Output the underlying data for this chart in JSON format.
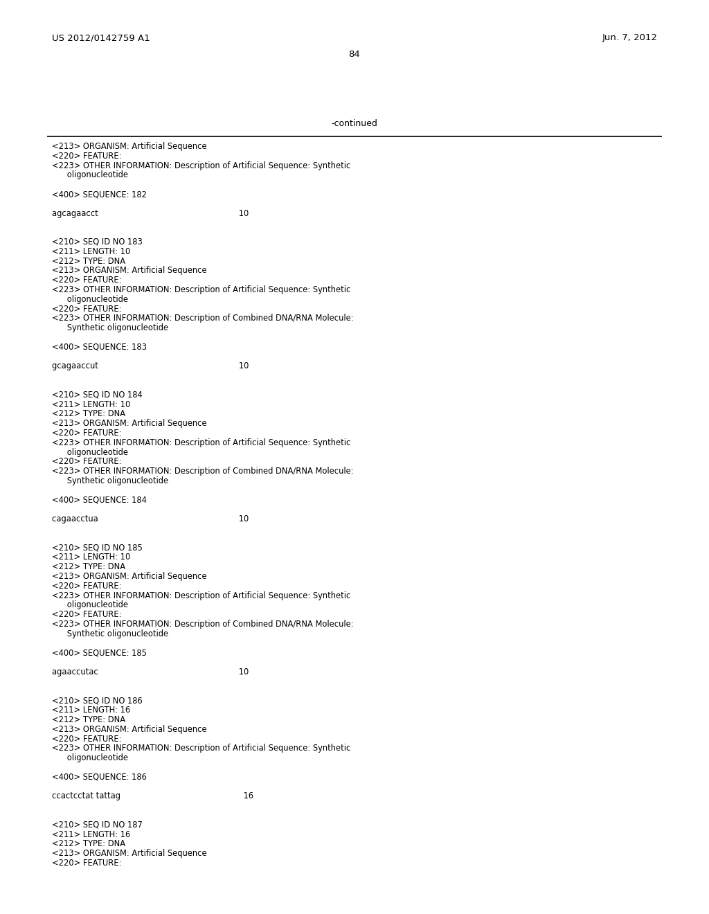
{
  "header_left": "US 2012/0142759 A1",
  "header_right": "Jun. 7, 2012",
  "page_number": "84",
  "continued_text": "-continued",
  "background_color": "#ffffff",
  "text_color": "#000000",
  "content": [
    "<213> ORGANISM: Artificial Sequence",
    "<220> FEATURE:",
    "<223> OTHER INFORMATION: Description of Artificial Sequence: Synthetic",
    "      oligonucleotide",
    "",
    "<400> SEQUENCE: 182",
    "",
    "agcagaacct                                                        10",
    "",
    "",
    "<210> SEQ ID NO 183",
    "<211> LENGTH: 10",
    "<212> TYPE: DNA",
    "<213> ORGANISM: Artificial Sequence",
    "<220> FEATURE:",
    "<223> OTHER INFORMATION: Description of Artificial Sequence: Synthetic",
    "      oligonucleotide",
    "<220> FEATURE:",
    "<223> OTHER INFORMATION: Description of Combined DNA/RNA Molecule:",
    "      Synthetic oligonucleotide",
    "",
    "<400> SEQUENCE: 183",
    "",
    "gcagaaccut                                                        10",
    "",
    "",
    "<210> SEQ ID NO 184",
    "<211> LENGTH: 10",
    "<212> TYPE: DNA",
    "<213> ORGANISM: Artificial Sequence",
    "<220> FEATURE:",
    "<223> OTHER INFORMATION: Description of Artificial Sequence: Synthetic",
    "      oligonucleotide",
    "<220> FEATURE:",
    "<223> OTHER INFORMATION: Description of Combined DNA/RNA Molecule:",
    "      Synthetic oligonucleotide",
    "",
    "<400> SEQUENCE: 184",
    "",
    "cagaacctua                                                        10",
    "",
    "",
    "<210> SEQ ID NO 185",
    "<211> LENGTH: 10",
    "<212> TYPE: DNA",
    "<213> ORGANISM: Artificial Sequence",
    "<220> FEATURE:",
    "<223> OTHER INFORMATION: Description of Artificial Sequence: Synthetic",
    "      oligonucleotide",
    "<220> FEATURE:",
    "<223> OTHER INFORMATION: Description of Combined DNA/RNA Molecule:",
    "      Synthetic oligonucleotide",
    "",
    "<400> SEQUENCE: 185",
    "",
    "agaaccutac                                                        10",
    "",
    "",
    "<210> SEQ ID NO 186",
    "<211> LENGTH: 16",
    "<212> TYPE: DNA",
    "<213> ORGANISM: Artificial Sequence",
    "<220> FEATURE:",
    "<223> OTHER INFORMATION: Description of Artificial Sequence: Synthetic",
    "      oligonucleotide",
    "",
    "<400> SEQUENCE: 186",
    "",
    "ccactcctat tattag                                                 16",
    "",
    "",
    "<210> SEQ ID NO 187",
    "<211> LENGTH: 16",
    "<212> TYPE: DNA",
    "<213> ORGANISM: Artificial Sequence",
    "<220> FEATURE:"
  ]
}
